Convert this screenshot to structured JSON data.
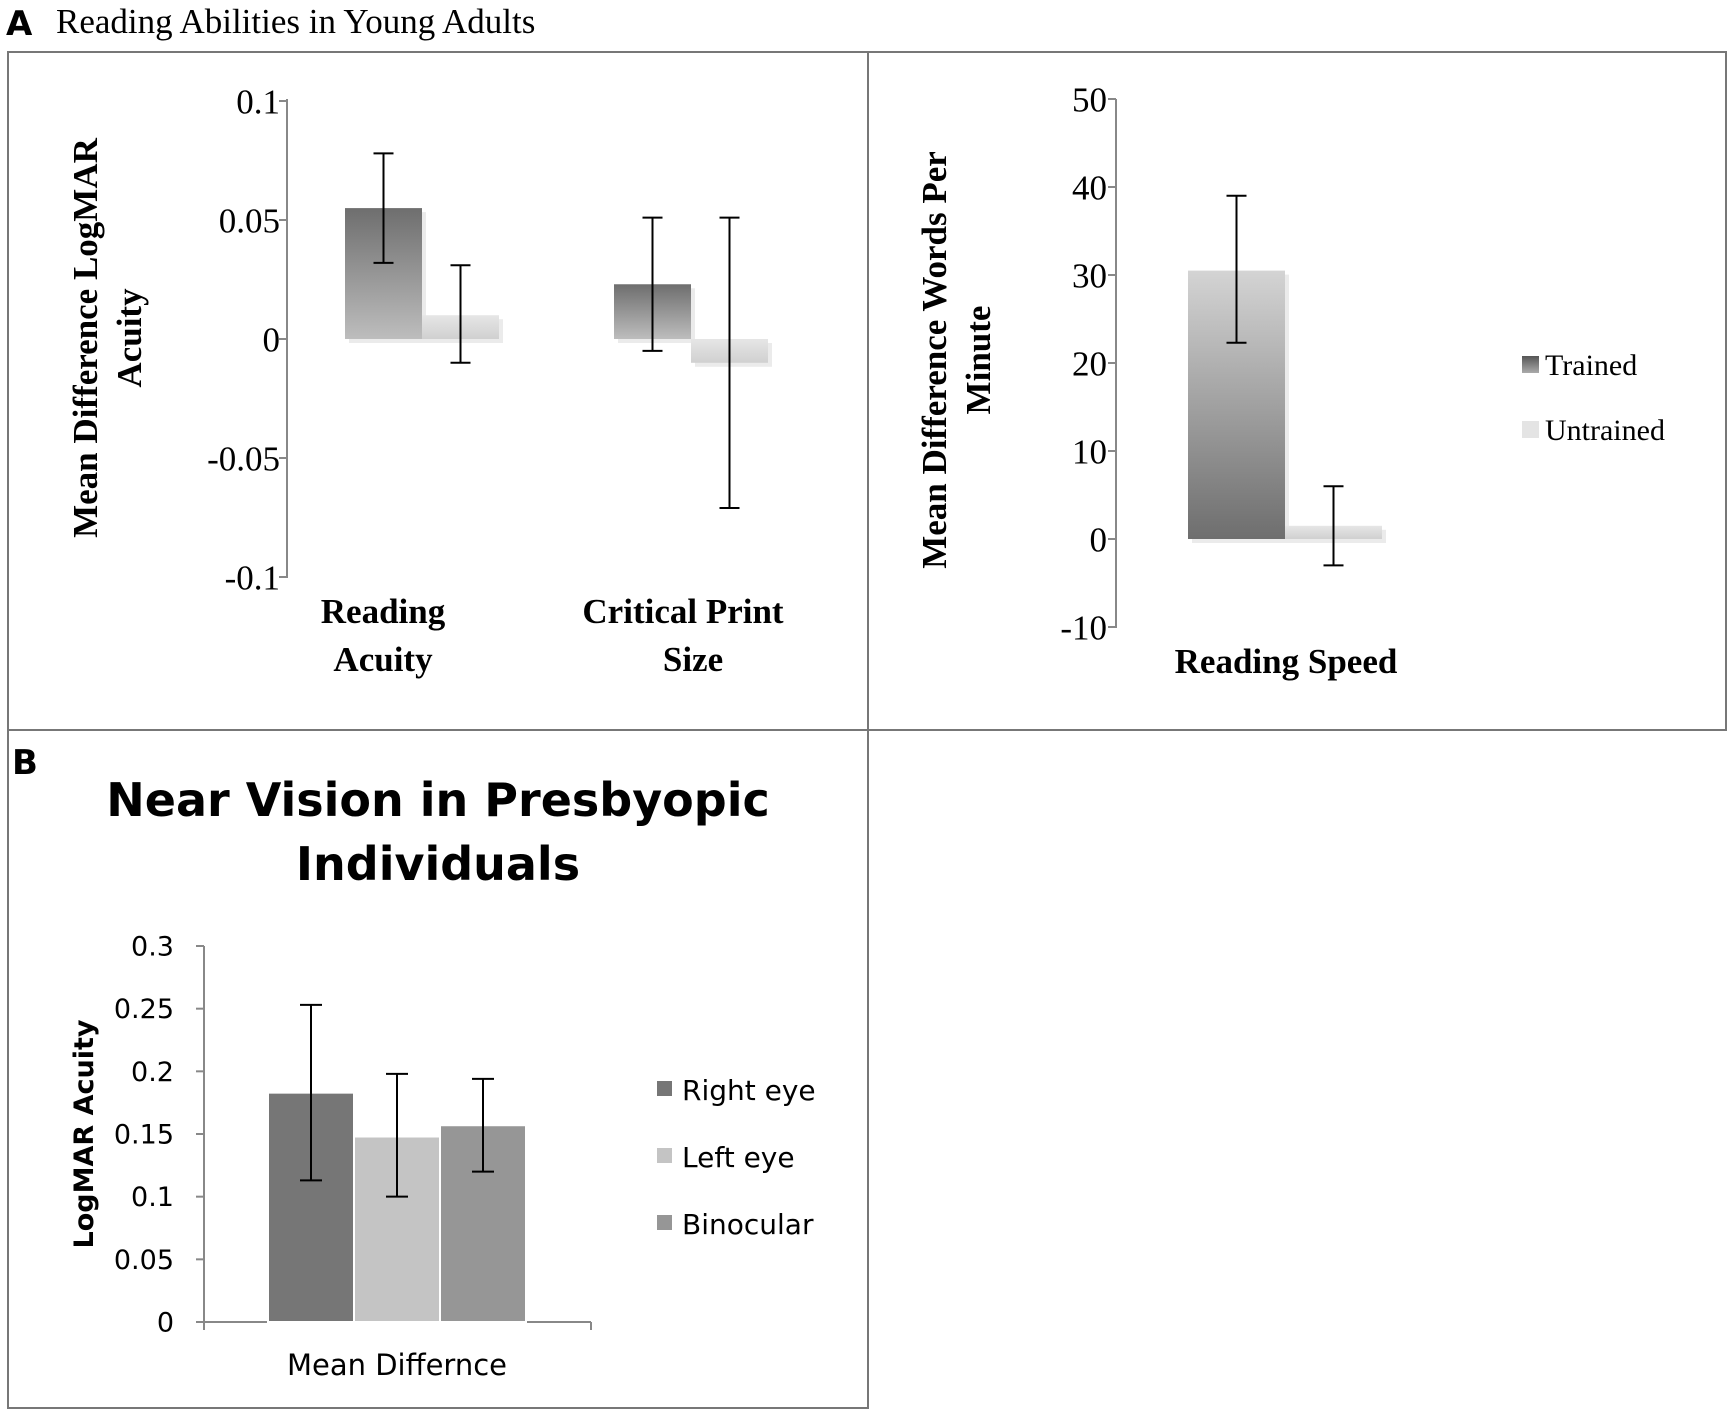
{
  "colors": {
    "trained_dark": "#6e6e6e",
    "trained_light": "#bdbdbd",
    "untrained_dark": "#d2d2d2",
    "untrained_light": "#e8e8e8",
    "right_eye": "#767676",
    "left_eye": "#c4c4c4",
    "binocular": "#969696",
    "axis": "#888888",
    "border": "#777777"
  },
  "panel_a": {
    "letter": "A",
    "title": "Reading Abilities in Young Adults",
    "legend": [
      "Trained",
      "Untrained"
    ]
  },
  "panel_b": {
    "letter": "B",
    "title_line1": "Near Vision in Presbyopic",
    "title_line2": "Individuals",
    "legend": [
      "Right eye",
      "Left eye",
      "Binocular"
    ]
  },
  "chart_data": [
    {
      "id": "acuity",
      "type": "bar",
      "title": "",
      "ylabel_line1": "Mean Difference LogMAR",
      "ylabel_line2": "Acuity",
      "ylim": [
        -0.1,
        0.1
      ],
      "yticks": [
        -0.1,
        -0.05,
        0,
        0.05,
        0.1
      ],
      "ytick_labels": [
        "-0.1",
        "-0.05",
        "0",
        "0.05",
        "0.1"
      ],
      "categories": [
        "Reading Acuity",
        "Critical Print Size"
      ],
      "category_lines": [
        [
          "Reading",
          "Acuity"
        ],
        [
          "Critical Print",
          "Size"
        ]
      ],
      "series": [
        {
          "name": "Trained",
          "values": [
            0.055,
            0.023
          ],
          "err_low": [
            0.032,
            -0.005
          ],
          "err_high": [
            0.078,
            0.051
          ]
        },
        {
          "name": "Untrained",
          "values": [
            0.01,
            -0.01
          ],
          "err_low": [
            -0.01,
            -0.071
          ],
          "err_high": [
            0.031,
            0.051
          ]
        }
      ]
    },
    {
      "id": "speed",
      "type": "bar",
      "title": "",
      "ylabel_line1": "Mean Difference Words Per",
      "ylabel_line2": "Minute",
      "ylim": [
        -10,
        50
      ],
      "yticks": [
        -10,
        0,
        10,
        20,
        30,
        40,
        50
      ],
      "ytick_labels": [
        "-10",
        "0",
        "10",
        "20",
        "30",
        "40",
        "50"
      ],
      "categories": [
        "Reading Speed"
      ],
      "category_lines": [
        [
          "Reading Speed"
        ]
      ],
      "series": [
        {
          "name": "Trained",
          "values": [
            30.5
          ],
          "err_low": [
            22.3
          ],
          "err_high": [
            39
          ]
        },
        {
          "name": "Untrained",
          "values": [
            1.5
          ],
          "err_low": [
            -3
          ],
          "err_high": [
            6
          ]
        }
      ],
      "legend_position": "right"
    },
    {
      "id": "presbyopic",
      "type": "bar",
      "title": "Near Vision in Presbyopic Individuals",
      "ylabel_line1": "LogMAR Acuity",
      "ylim": [
        0,
        0.3
      ],
      "yticks": [
        0,
        0.05,
        0.1,
        0.15,
        0.2,
        0.25,
        0.3
      ],
      "ytick_labels": [
        "0",
        "0.05",
        "0.1",
        "0.15",
        "0.2",
        "0.25",
        "0.3"
      ],
      "categories": [
        "Mean Differnce"
      ],
      "category_lines": [
        [
          "Mean Differnce"
        ]
      ],
      "series": [
        {
          "name": "Right eye",
          "values": [
            0.183
          ],
          "err_low": [
            0.113
          ],
          "err_high": [
            0.253
          ]
        },
        {
          "name": "Left eye",
          "values": [
            0.148
          ],
          "err_low": [
            0.1
          ],
          "err_high": [
            0.198
          ]
        },
        {
          "name": "Binocular",
          "values": [
            0.157
          ],
          "err_low": [
            0.12
          ],
          "err_high": [
            0.194
          ]
        }
      ],
      "legend_position": "right"
    }
  ]
}
